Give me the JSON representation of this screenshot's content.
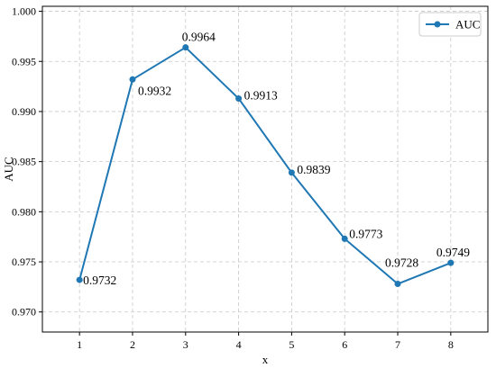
{
  "chart_data": {
    "type": "line",
    "title": "",
    "xlabel": "x",
    "ylabel": "AUC",
    "x": [
      1,
      2,
      3,
      4,
      5,
      6,
      7,
      8
    ],
    "x_ticks": [
      "1",
      "2",
      "3",
      "4",
      "5",
      "6",
      "7",
      "8"
    ],
    "xlim": [
      0.3,
      8.7
    ],
    "ylim": [
      0.968,
      1.0005
    ],
    "y_ticks": [
      0.97,
      0.975,
      0.98,
      0.985,
      0.99,
      0.995,
      1.0
    ],
    "y_tick_labels": [
      "0.970",
      "0.975",
      "0.980",
      "0.985",
      "0.990",
      "0.995",
      "1.000"
    ],
    "grid": true,
    "legend_position": "top-right",
    "series": [
      {
        "name": "AUC",
        "color": "#1f77b4",
        "values": [
          0.9732,
          0.9932,
          0.9964,
          0.9913,
          0.9839,
          0.9773,
          0.9728,
          0.9749
        ],
        "data_labels": [
          "0.9732",
          "0.9932",
          "0.9964",
          "0.9913",
          "0.9839",
          "0.9773",
          "0.9728",
          "0.9749"
        ]
      }
    ]
  }
}
